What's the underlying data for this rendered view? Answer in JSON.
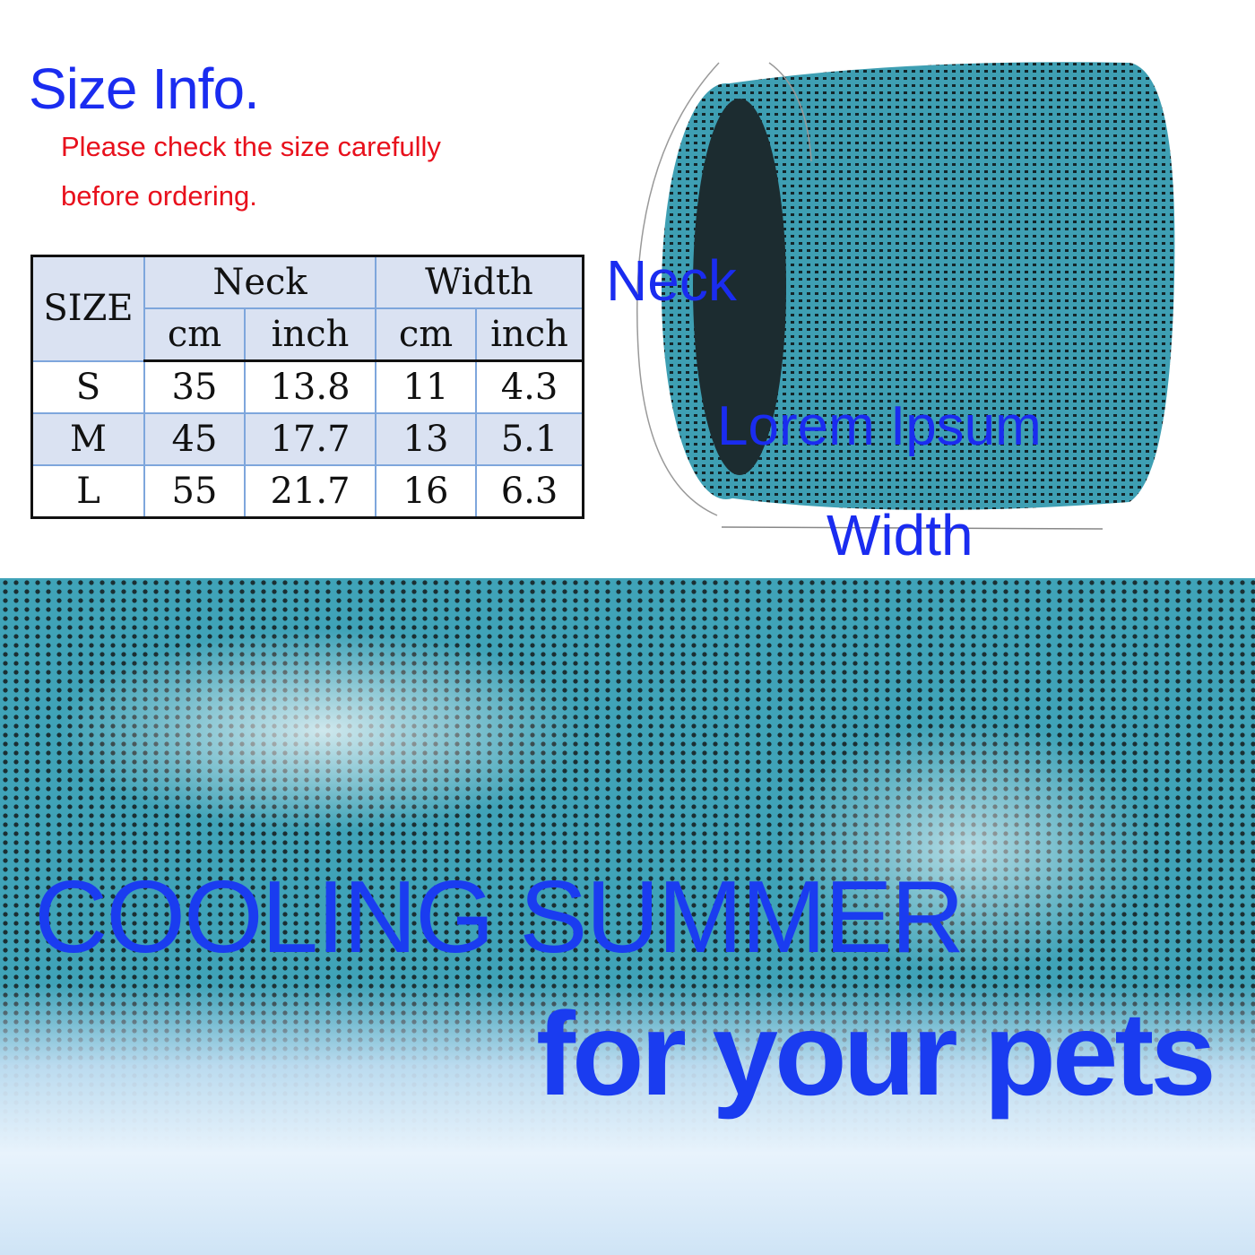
{
  "header": {
    "title": "Size Info.",
    "subtitle_line1": "Please check the size carefully",
    "subtitle_line2": "before ordering."
  },
  "size_table": {
    "size_header": "SIZE",
    "groups": [
      "Neck",
      "Width"
    ],
    "units": [
      "cm",
      "inch",
      "cm",
      "inch"
    ],
    "rows": [
      {
        "size": "S",
        "values": [
          "35",
          "13.8",
          "11",
          "4.3"
        ]
      },
      {
        "size": "M",
        "values": [
          "45",
          "17.7",
          "13",
          "5.1"
        ]
      },
      {
        "size": "L",
        "values": [
          "55",
          "21.7",
          "16",
          "6.3"
        ]
      }
    ]
  },
  "product_labels": {
    "neck": "Neck",
    "brand": "Lorem Ipsum",
    "width": "Width"
  },
  "banner": {
    "line1": "COOLING SUMMER",
    "line2": "for your pets"
  },
  "colors": {
    "accent_blue": "#1a2cf0",
    "warning_red": "#e8101c",
    "fabric_teal": "#3fa3b8",
    "table_header": "#dae2f2"
  }
}
